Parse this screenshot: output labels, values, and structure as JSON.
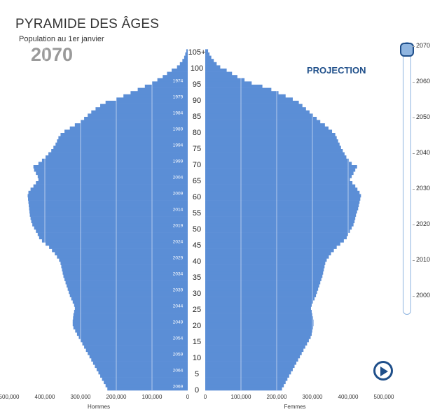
{
  "header": {
    "title": "PYRAMIDE DES ÂGES",
    "subtitle": "Population au 1er janvier",
    "current_year": "2070",
    "projection_label": "PROJECTION"
  },
  "colors": {
    "bar": "#5b8ed6",
    "accent": "#1f4f8a",
    "year_text": "#9a9a9a",
    "slider": "#8fb5e0"
  },
  "controls": {
    "play_icon": "play-icon"
  },
  "slider": {
    "selected": "2070",
    "labels": [
      "2070",
      "2060",
      "2050",
      "2040",
      "2030",
      "2020",
      "2010",
      "2000"
    ]
  },
  "chart_data": {
    "type": "bar",
    "orientation": "horizontal-population-pyramid",
    "xlabel_left": "Hommes",
    "xlabel_right": "Femmes",
    "x_ticks_left": [
      "500,000",
      "400,000",
      "300,000",
      "200,000",
      "100,000",
      "0"
    ],
    "x_ticks_right": [
      "0",
      "100,000",
      "200,000",
      "300,000",
      "400,000",
      "500,000"
    ],
    "xlim": [
      0,
      500000
    ],
    "age_ticks": [
      "0",
      "5",
      "10",
      "15",
      "20",
      "25",
      "30",
      "35",
      "40",
      "45",
      "50",
      "55",
      "60",
      "65",
      "70",
      "75",
      "80",
      "85",
      "90",
      "95",
      "100",
      "105+"
    ],
    "birth_year_labels": [
      "1974",
      "1979",
      "1984",
      "1989",
      "1994",
      "1999",
      "2004",
      "2009",
      "2014",
      "2019",
      "2024",
      "2029",
      "2034",
      "2039",
      "2044",
      "2049",
      "2054",
      "2059",
      "2064",
      "2069"
    ],
    "ages": [
      0,
      1,
      2,
      3,
      4,
      5,
      6,
      7,
      8,
      9,
      10,
      11,
      12,
      13,
      14,
      15,
      16,
      17,
      18,
      19,
      20,
      21,
      22,
      23,
      24,
      25,
      26,
      27,
      28,
      29,
      30,
      31,
      32,
      33,
      34,
      35,
      36,
      37,
      38,
      39,
      40,
      41,
      42,
      43,
      44,
      45,
      46,
      47,
      48,
      49,
      50,
      51,
      52,
      53,
      54,
      55,
      56,
      57,
      58,
      59,
      60,
      61,
      62,
      63,
      64,
      65,
      66,
      67,
      68,
      69,
      70,
      71,
      72,
      73,
      74,
      75,
      76,
      77,
      78,
      79,
      80,
      81,
      82,
      83,
      84,
      85,
      86,
      87,
      88,
      89,
      90,
      91,
      92,
      93,
      94,
      95,
      96,
      97,
      98,
      99,
      100,
      101,
      102,
      103,
      104,
      105
    ],
    "series": [
      {
        "name": "Hommes",
        "values": [
          225000,
          230000,
          235000,
          240000,
          245000,
          250000,
          255000,
          260000,
          265000,
          270000,
          275000,
          280000,
          285000,
          290000,
          295000,
          300000,
          305000,
          310000,
          315000,
          320000,
          322000,
          322000,
          321000,
          320000,
          318000,
          316000,
          318000,
          322000,
          326000,
          330000,
          333000,
          336000,
          339000,
          342000,
          345000,
          348000,
          350000,
          352000,
          354000,
          356000,
          360000,
          366000,
          372000,
          380000,
          388000,
          398000,
          408000,
          416000,
          420000,
          425000,
          430000,
          435000,
          438000,
          440000,
          442000,
          443000,
          444000,
          445000,
          446000,
          447000,
          448000,
          446000,
          440000,
          432000,
          425000,
          418000,
          420000,
          425000,
          430000,
          432000,
          418000,
          408000,
          398000,
          390000,
          382000,
          376000,
          370000,
          366000,
          362000,
          356000,
          345000,
          330000,
          316000,
          300000,
          290000,
          280000,
          270000,
          258000,
          245000,
          230000,
          200000,
          180000,
          160000,
          140000,
          120000,
          100000,
          85000,
          70000,
          58000,
          45000,
          30000,
          22000,
          15000,
          10000,
          7000,
          4000
        ]
      },
      {
        "name": "Femmes",
        "values": [
          215000,
          220000,
          225000,
          230000,
          235000,
          240000,
          245000,
          250000,
          255000,
          260000,
          265000,
          270000,
          275000,
          280000,
          285000,
          290000,
          295000,
          298000,
          300000,
          302000,
          303000,
          303000,
          302000,
          300000,
          298000,
          296000,
          298000,
          302000,
          306000,
          310000,
          313000,
          316000,
          319000,
          322000,
          325000,
          328000,
          330000,
          332000,
          334000,
          336000,
          340000,
          346000,
          352000,
          360000,
          368000,
          378000,
          388000,
          396000,
          400000,
          405000,
          410000,
          415000,
          418000,
          420000,
          422000,
          425000,
          428000,
          430000,
          432000,
          434000,
          436000,
          432000,
          426000,
          420000,
          412000,
          405000,
          410000,
          415000,
          420000,
          425000,
          410000,
          402000,
          395000,
          390000,
          385000,
          380000,
          376000,
          372000,
          368000,
          364000,
          355000,
          345000,
          335000,
          322000,
          312000,
          302000,
          292000,
          282000,
          272000,
          262000,
          245000,
          225000,
          205000,
          185000,
          160000,
          130000,
          110000,
          90000,
          75000,
          60000,
          42000,
          32000,
          24000,
          17000,
          12000,
          8000
        ]
      }
    ]
  }
}
